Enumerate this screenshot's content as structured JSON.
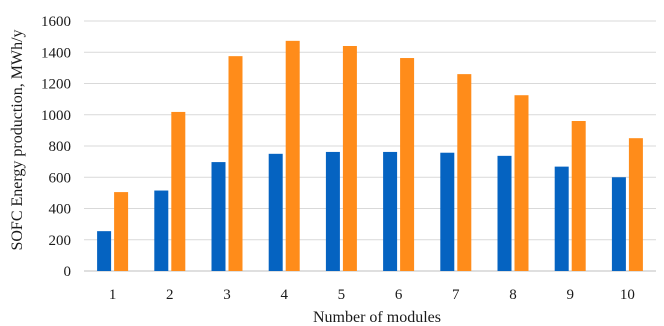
{
  "chart_data": {
    "type": "bar",
    "title": "",
    "xlabel": "Number of modules",
    "ylabel": "SOFC Energy production, MWh/y",
    "categories": [
      "1",
      "2",
      "3",
      "4",
      "5",
      "6",
      "7",
      "8",
      "9",
      "10"
    ],
    "series": [
      {
        "values": [
          255,
          515,
          697,
          750,
          762,
          762,
          757,
          737,
          668,
          600
        ],
        "color": "#0563C1"
      },
      {
        "values": [
          505,
          1018,
          1375,
          1473,
          1440,
          1363,
          1260,
          1125,
          960,
          850
        ],
        "color": "#FF8C1A"
      }
    ],
    "ylim": [
      0,
      1600
    ],
    "yticks": [
      0,
      200,
      400,
      600,
      800,
      1000,
      1200,
      1400,
      1600
    ],
    "grid": true,
    "legend": "none"
  }
}
